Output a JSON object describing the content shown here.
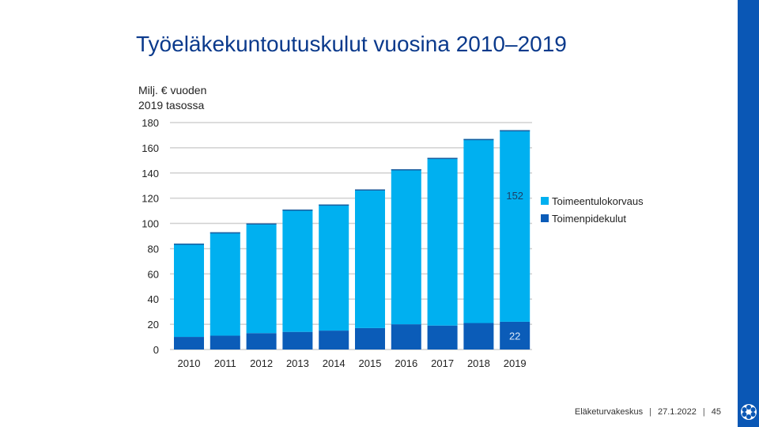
{
  "slide": {
    "title": "Työeläkekuntoutuskulut vuosina 2010–2019",
    "footer": {
      "org": "Eläketurvakeskus",
      "date": "27.1.2022",
      "page": "45"
    }
  },
  "colors": {
    "title": "#0b3a8c",
    "band": "#0a57b5",
    "series_light": "#00b0f0",
    "series_dark": "#0b5cb8"
  },
  "chart_data": {
    "type": "bar",
    "stacked": true,
    "title": "Työeläkekuntoutuskulut vuosina 2010–2019",
    "ylabel_lines": [
      "Milj. € vuoden",
      "2019 tasossa"
    ],
    "xlabel": "",
    "ylim": [
      0,
      180
    ],
    "yticks": [
      0,
      20,
      40,
      60,
      80,
      100,
      120,
      140,
      160,
      180
    ],
    "grid": true,
    "legend_position": "right",
    "categories": [
      "2010",
      "2011",
      "2012",
      "2013",
      "2014",
      "2015",
      "2016",
      "2017",
      "2018",
      "2019"
    ],
    "series": [
      {
        "name": "Toimenpidekulut",
        "values": [
          10,
          11,
          13,
          14,
          15,
          17,
          20,
          19,
          21,
          22
        ]
      },
      {
        "name": "Toimeentulokorvaus",
        "values": [
          74,
          82,
          87,
          97,
          100,
          110,
          123,
          133,
          146,
          152
        ]
      }
    ],
    "legend_order": [
      "Toimeentulokorvaus",
      "Toimenpidekulut"
    ],
    "data_labels": [
      {
        "series": "Toimeentulokorvaus",
        "category": "2019",
        "text": "152"
      },
      {
        "series": "Toimenpidekulut",
        "category": "2019",
        "text": "22"
      }
    ]
  }
}
